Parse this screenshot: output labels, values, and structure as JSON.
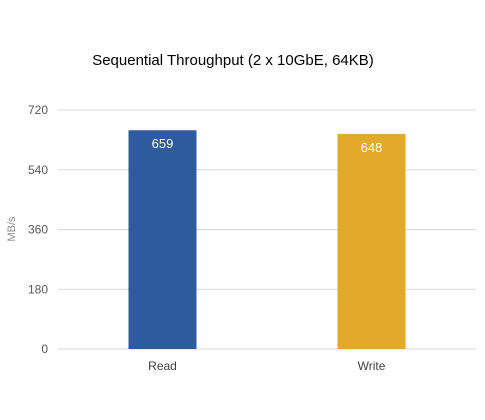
{
  "chart_data": {
    "type": "bar",
    "title": "Sequential Throughput (2 x 10GbE, 64KB)",
    "xlabel": "",
    "ylabel": "MB/s",
    "categories": [
      "Read",
      "Write"
    ],
    "values": [
      659,
      648
    ],
    "data_labels": [
      "659",
      "648"
    ],
    "bar_colors": [
      "#2E5B9E",
      "#E3A92B"
    ],
    "ylim": [
      0,
      720
    ],
    "yticks": [
      0,
      180,
      360,
      540,
      720
    ],
    "grid": true,
    "legend": "none"
  }
}
